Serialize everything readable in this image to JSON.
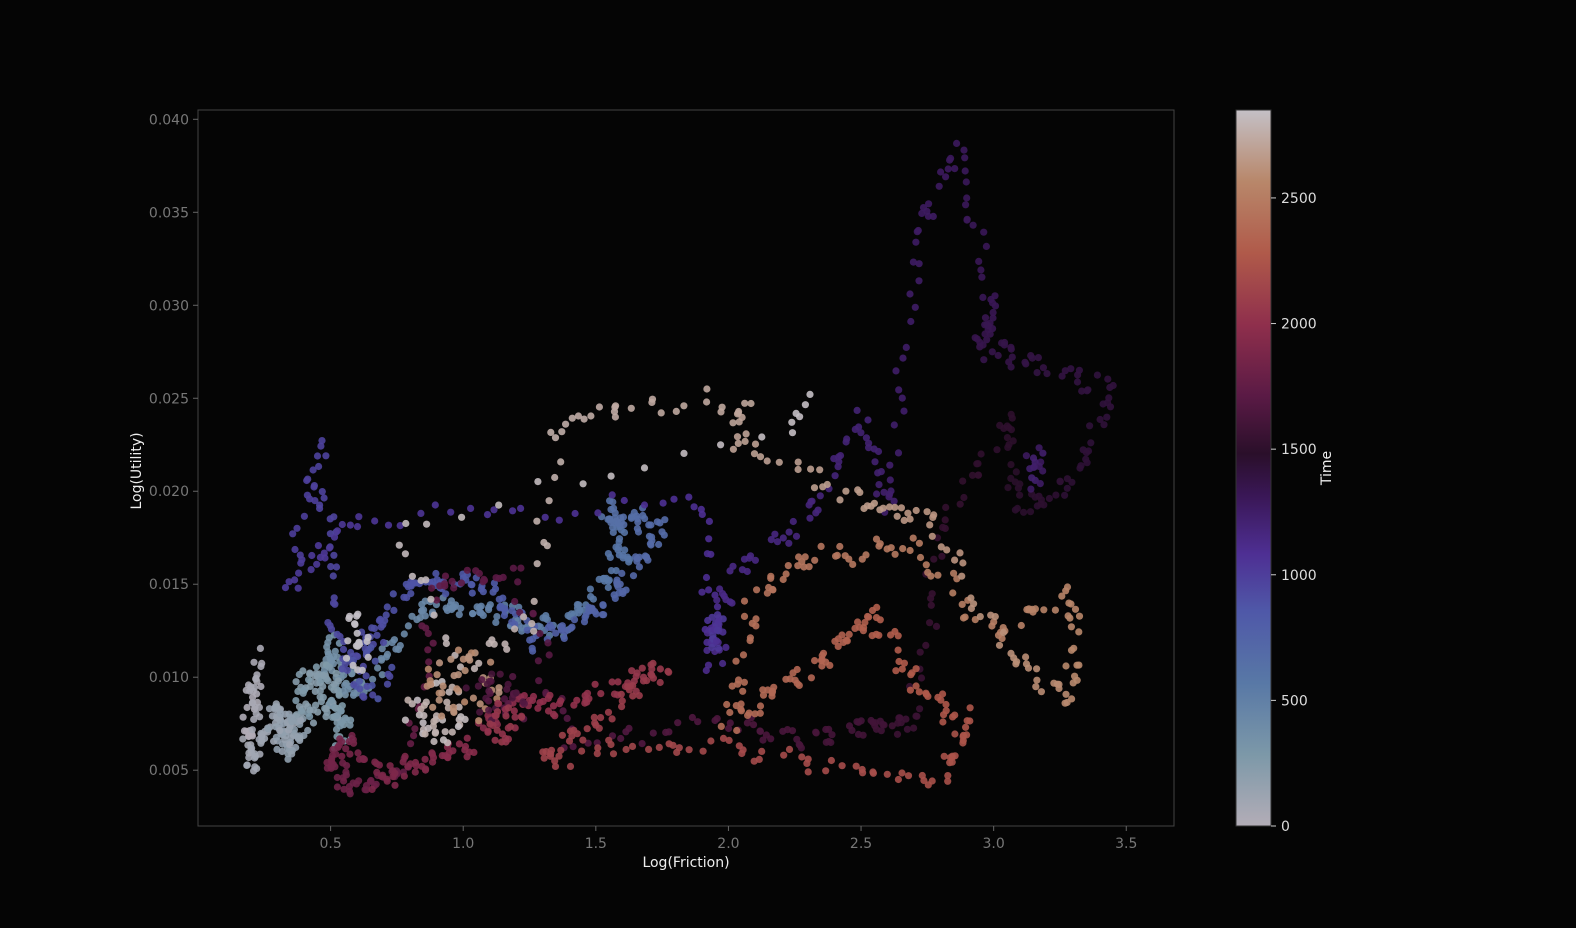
{
  "chart_data": {
    "type": "scatter",
    "title": "",
    "xlabel": "Log(Friction)",
    "ylabel": "Log(Utility)",
    "xlim": [
      0.0,
      3.68
    ],
    "ylim": [
      0.002,
      0.0405
    ],
    "xticks": [
      0.5,
      1.0,
      1.5,
      2.0,
      2.5,
      3.0,
      3.5
    ],
    "xtick_labels": [
      "0.5",
      "1.0",
      "1.5",
      "2.0",
      "2.5",
      "3.0",
      "3.5"
    ],
    "yticks": [
      0.005,
      0.01,
      0.015,
      0.02,
      0.025,
      0.03,
      0.035,
      0.04
    ],
    "ytick_labels": [
      "0.005",
      "0.010",
      "0.015",
      "0.020",
      "0.025",
      "0.030",
      "0.035",
      "0.040"
    ],
    "grid": false,
    "colorbar": {
      "label": "Time",
      "range": [
        0,
        2850
      ],
      "ticks": [
        0,
        500,
        1000,
        1500,
        2000,
        2500
      ],
      "tick_labels": [
        "0",
        "500",
        "1000",
        "1500",
        "2000",
        "2500"
      ],
      "colormap": "twilight",
      "stops": [
        {
          "t": 0.0,
          "color": "#b3adb7"
        },
        {
          "t": 0.1,
          "color": "#7c98a8"
        },
        {
          "t": 0.2,
          "color": "#5878a6"
        },
        {
          "t": 0.3,
          "color": "#4f58a8"
        },
        {
          "t": 0.38,
          "color": "#4e2f93"
        },
        {
          "t": 0.46,
          "color": "#3a1757"
        },
        {
          "t": 0.52,
          "color": "#2a0f2a"
        },
        {
          "t": 0.6,
          "color": "#5a1a45"
        },
        {
          "t": 0.7,
          "color": "#8f2f4c"
        },
        {
          "t": 0.8,
          "color": "#b05a4a"
        },
        {
          "t": 0.9,
          "color": "#b8876a"
        },
        {
          "t": 1.0,
          "color": "#c4c0c6"
        }
      ]
    },
    "path_nodes": [
      [
        0,
        0.18,
        0.006
      ],
      [
        40,
        0.22,
        0.011
      ],
      [
        80,
        0.2,
        0.005
      ],
      [
        130,
        0.3,
        0.0085
      ],
      [
        180,
        0.35,
        0.006
      ],
      [
        230,
        0.45,
        0.0105
      ],
      [
        280,
        0.55,
        0.0065
      ],
      [
        330,
        0.5,
        0.012
      ],
      [
        380,
        0.6,
        0.009
      ],
      [
        430,
        0.85,
        0.014
      ],
      [
        480,
        1.1,
        0.0135
      ],
      [
        530,
        1.35,
        0.0125
      ],
      [
        580,
        1.6,
        0.016
      ],
      [
        630,
        1.55,
        0.019
      ],
      [
        680,
        1.75,
        0.018
      ],
      [
        730,
        1.55,
        0.014
      ],
      [
        780,
        1.3,
        0.012
      ],
      [
        830,
        1.05,
        0.015
      ],
      [
        880,
        0.8,
        0.015
      ],
      [
        930,
        0.55,
        0.0105
      ],
      [
        980,
        0.45,
        0.0225
      ],
      [
        1010,
        0.35,
        0.015
      ],
      [
        1040,
        0.6,
        0.0185
      ],
      [
        1080,
        1.9,
        0.0195
      ],
      [
        1110,
        1.95,
        0.0105
      ],
      [
        1140,
        2.0,
        0.0155
      ],
      [
        1170,
        2.3,
        0.0185
      ],
      [
        1200,
        2.5,
        0.024
      ],
      [
        1230,
        2.6,
        0.019
      ],
      [
        1260,
        2.7,
        0.033
      ],
      [
        1290,
        2.85,
        0.0385
      ],
      [
        1320,
        3.0,
        0.03
      ],
      [
        1350,
        2.95,
        0.028
      ],
      [
        1380,
        3.15,
        0.027
      ],
      [
        1410,
        3.45,
        0.0255
      ],
      [
        1440,
        3.3,
        0.0205
      ],
      [
        1470,
        3.1,
        0.019
      ],
      [
        1500,
        3.05,
        0.024
      ],
      [
        1530,
        2.8,
        0.018
      ],
      [
        1560,
        2.7,
        0.0075
      ],
      [
        1590,
        2.55,
        0.0075
      ],
      [
        1620,
        2.3,
        0.0065
      ],
      [
        1650,
        2.0,
        0.0075
      ],
      [
        1680,
        1.4,
        0.0065
      ],
      [
        1710,
        1.2,
        0.0155
      ],
      [
        1740,
        0.9,
        0.015
      ],
      [
        1770,
        0.8,
        0.0055
      ],
      [
        1800,
        0.6,
        0.004
      ],
      [
        1830,
        0.5,
        0.005
      ],
      [
        1860,
        0.55,
        0.0065
      ],
      [
        1890,
        0.7,
        0.0045
      ],
      [
        1920,
        0.85,
        0.0055
      ],
      [
        1950,
        1.0,
        0.006
      ],
      [
        1980,
        1.2,
        0.009
      ],
      [
        2010,
        1.35,
        0.0085
      ],
      [
        2040,
        1.6,
        0.0095
      ],
      [
        2070,
        1.75,
        0.0105
      ],
      [
        2100,
        1.5,
        0.0075
      ],
      [
        2130,
        1.3,
        0.0055
      ],
      [
        2160,
        1.8,
        0.0065
      ],
      [
        2190,
        2.3,
        0.0055
      ],
      [
        2220,
        2.8,
        0.0045
      ],
      [
        2250,
        2.9,
        0.0075
      ],
      [
        2280,
        2.7,
        0.0095
      ],
      [
        2310,
        2.55,
        0.0135
      ],
      [
        2340,
        2.4,
        0.0115
      ],
      [
        2370,
        2.2,
        0.0095
      ],
      [
        2400,
        2.0,
        0.0075
      ],
      [
        2430,
        2.1,
        0.0145
      ],
      [
        2460,
        2.35,
        0.0165
      ],
      [
        2490,
        2.7,
        0.017
      ],
      [
        2520,
        3.0,
        0.0125
      ],
      [
        2550,
        3.3,
        0.0145
      ],
      [
        2580,
        3.3,
        0.0085
      ],
      [
        2610,
        3.05,
        0.0115
      ],
      [
        2640,
        2.75,
        0.0185
      ],
      [
        2670,
        2.5,
        0.0195
      ],
      [
        2700,
        2.05,
        0.0225
      ],
      [
        2720,
        2.05,
        0.025
      ],
      [
        2740,
        1.6,
        0.0245
      ],
      [
        2760,
        1.35,
        0.0235
      ],
      [
        2780,
        1.25,
        0.0125
      ],
      [
        2800,
        1.0,
        0.0105
      ],
      [
        2820,
        0.75,
        0.018
      ],
      [
        2840,
        2.25,
        0.0235
      ],
      [
        2850,
        2.3,
        0.025
      ]
    ],
    "extra_clusters": [
      {
        "t": 250,
        "x": 0.45,
        "y": 0.009,
        "spread": [
          0.1,
          0.0018
        ],
        "count": 45
      },
      {
        "t": 150,
        "x": 0.33,
        "y": 0.007,
        "spread": [
          0.07,
          0.0012
        ],
        "count": 30
      },
      {
        "t": 2800,
        "x": 0.9,
        "y": 0.008,
        "spread": [
          0.12,
          0.0018
        ],
        "count": 40
      },
      {
        "t": 2600,
        "x": 1.0,
        "y": 0.0095,
        "spread": [
          0.15,
          0.002
        ],
        "count": 40
      },
      {
        "t": 1650,
        "x": 1.15,
        "y": 0.009,
        "spread": [
          0.15,
          0.0015
        ],
        "count": 30
      },
      {
        "t": 2050,
        "x": 1.15,
        "y": 0.0075,
        "spread": [
          0.08,
          0.0012
        ],
        "count": 25
      },
      {
        "t": 1050,
        "x": 1.95,
        "y": 0.0125,
        "spread": [
          0.04,
          0.001
        ],
        "count": 25
      },
      {
        "t": 1250,
        "x": 3.15,
        "y": 0.0215,
        "spread": [
          0.04,
          0.0015
        ],
        "count": 15
      },
      {
        "t": 900,
        "x": 0.65,
        "y": 0.0105,
        "spread": [
          0.1,
          0.0018
        ],
        "count": 30
      },
      {
        "t": 2900,
        "x": 0.6,
        "y": 0.012,
        "spread": [
          0.05,
          0.002
        ],
        "count": 20
      }
    ]
  }
}
